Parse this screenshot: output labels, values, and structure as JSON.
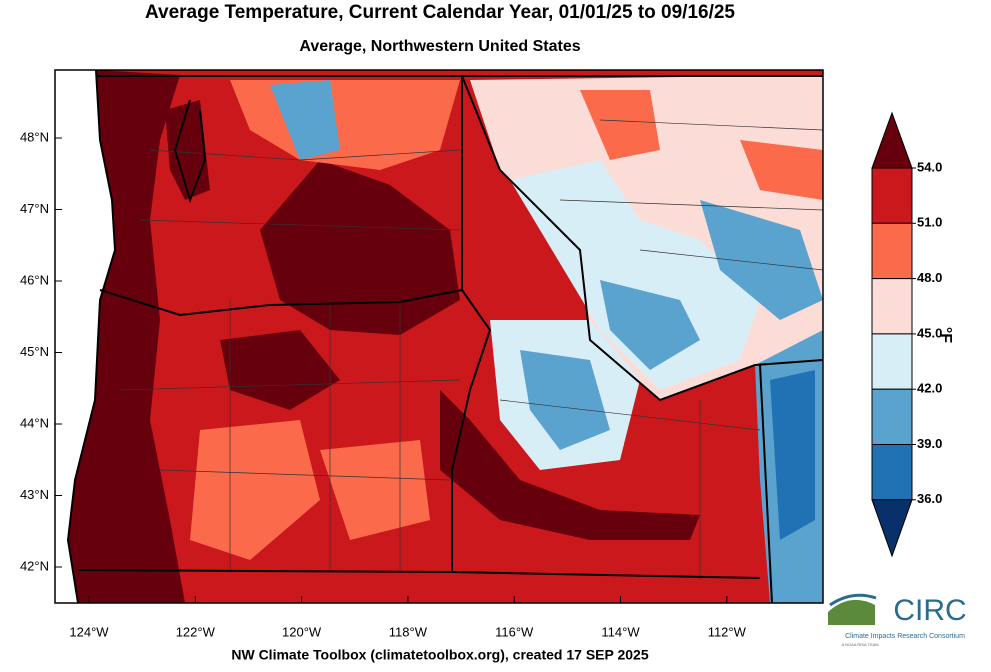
{
  "map": {
    "title": "Average Temperature, Current Calendar Year, 01/01/25 to 09/16/25",
    "subtitle": "Average, Northwestern United States",
    "lat_labels": [
      "48°N",
      "47°N",
      "46°N",
      "45°N",
      "44°N",
      "43°N",
      "42°N"
    ],
    "lon_labels": [
      "124°W",
      "122°W",
      "120°W",
      "118°W",
      "116°W",
      "114°W",
      "112°W"
    ],
    "colorbar": {
      "unit": "°F",
      "ticks": [
        {
          "value": 54,
          "label": "54.0"
        },
        {
          "value": 51,
          "label": "51.0"
        },
        {
          "value": 48,
          "label": "48.0"
        },
        {
          "value": 45,
          "label": "45.0"
        },
        {
          "value": 42,
          "label": "42.0"
        },
        {
          "value": 39,
          "label": "39.0"
        },
        {
          "value": 36,
          "label": "36.0"
        }
      ],
      "colors": [
        "#67000d",
        "#cb181d",
        "#fb6a4a",
        "#fcdcd6",
        "#d8eef6",
        "#5ba3cf",
        "#2171b5",
        "#08306b"
      ]
    },
    "footer": "NW Climate Toolbox (climatetoolbox.org), created 17 SEP 2025",
    "logo": {
      "name": "CIRC",
      "full_name": "Climate Impacts Research Consortium",
      "tagline": "A NOAA RISA TEAM"
    }
  }
}
